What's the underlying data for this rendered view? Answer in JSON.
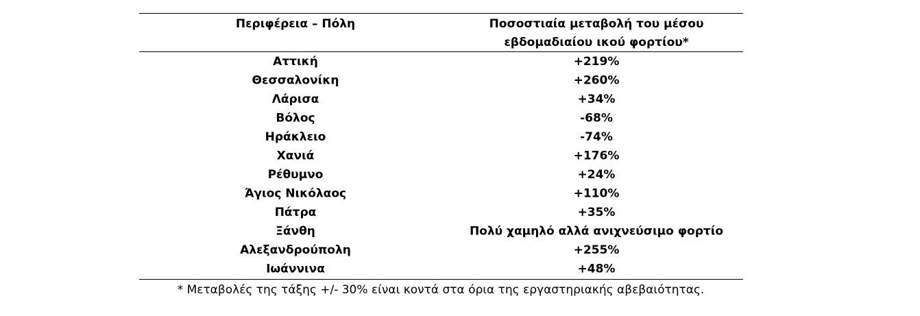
{
  "table": {
    "header": [
      [
        "Περιφέρεια – Πόλη"
      ],
      [
        "Ποσοστιαία μεταβολή του μέσου",
        "εβδομαδιαίου ικού φορτίου*"
      ]
    ],
    "rows": [
      [
        "Αττική",
        "+219%"
      ],
      [
        "Θεσσαλονίκη",
        "+260%"
      ],
      [
        "Λάρισα",
        "+34%"
      ],
      [
        "Βόλος",
        "-68%"
      ],
      [
        "Ηράκλειο",
        "-74%"
      ],
      [
        "Χανιά",
        "+176%"
      ],
      [
        "Ρέθυμνο",
        "+24%"
      ],
      [
        "Άγιος Νικόλαος",
        "+110%"
      ],
      [
        "Πάτρα",
        "+35%"
      ],
      [
        "Ξάνθη",
        "Πολύ χαμηλό αλλά ανιχνεύσιμο φορτίο"
      ],
      [
        "Αλεξανδρούπολη",
        "+255%"
      ],
      [
        "Ιωάννινα",
        "+48%"
      ]
    ],
    "footnote": "* Μεταβολές της τάξης +/- 30% είναι κοντά στα όρια της εργαστηριακής αβεβαιότητας."
  }
}
